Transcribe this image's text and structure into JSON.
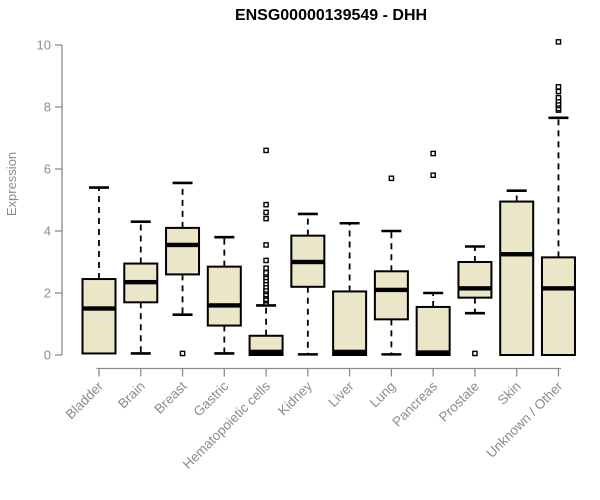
{
  "chart_data": {
    "type": "boxplot",
    "title": "ENSG00000139549 - DHH",
    "ylabel": "Expression",
    "xlabel": "",
    "ylim": [
      0,
      10
    ],
    "yticks": [
      0,
      2,
      4,
      6,
      8,
      10
    ],
    "grid": "off",
    "legend": "none",
    "colors": {
      "box_fill": "#ECE6C9",
      "box_border": "#000000",
      "median": "#000000",
      "whisker": "#000000",
      "outlier_border": "#000000",
      "outlier_fill": "#ffffff",
      "axis": "#8C8C8C",
      "tick_label": "#8C8C8C",
      "title": "#000000"
    },
    "categories": [
      "Bladder",
      "Brain",
      "Breast",
      "Gastric",
      "Hematopoietic cells",
      "Kidney",
      "Liver",
      "Lung",
      "Pancreas",
      "Prostate",
      "Skin",
      "Unknown / Other"
    ],
    "series": [
      {
        "label": "Bladder",
        "whisker_low": null,
        "q1": 0.05,
        "median": 1.5,
        "q3": 2.45,
        "whisker_high": 5.4,
        "outliers": []
      },
      {
        "label": "Brain",
        "whisker_low": 0.05,
        "q1": 1.7,
        "median": 2.35,
        "q3": 2.95,
        "whisker_high": 4.3,
        "outliers": []
      },
      {
        "label": "Breast",
        "whisker_low": 1.3,
        "q1": 2.6,
        "median": 3.55,
        "q3": 4.1,
        "whisker_high": 5.55,
        "outliers": [
          0.05
        ]
      },
      {
        "label": "Gastric",
        "whisker_low": 0.05,
        "q1": 0.95,
        "median": 1.6,
        "q3": 2.85,
        "whisker_high": 3.8,
        "outliers": []
      },
      {
        "label": "Hematopoietic cells",
        "whisker_low": null,
        "q1": 0.0,
        "median": 0.1,
        "q3": 0.62,
        "whisker_high": 1.6,
        "outliers": [
          1.68,
          1.75,
          1.8,
          1.9,
          1.95,
          2.05,
          2.1,
          2.2,
          2.3,
          2.4,
          2.5,
          2.6,
          2.65,
          2.8,
          3.05,
          3.55,
          4.4,
          4.6,
          4.85,
          6.6
        ]
      },
      {
        "label": "Kidney",
        "whisker_low": 0.02,
        "q1": 2.2,
        "median": 3.0,
        "q3": 3.85,
        "whisker_high": 4.55,
        "outliers": []
      },
      {
        "label": "Liver",
        "whisker_low": null,
        "q1": 0.0,
        "median": 0.1,
        "q3": 2.05,
        "whisker_high": 4.25,
        "outliers": []
      },
      {
        "label": "Lung",
        "whisker_low": 0.02,
        "q1": 1.15,
        "median": 2.1,
        "q3": 2.7,
        "whisker_high": 4.0,
        "outliers": [
          5.7
        ]
      },
      {
        "label": "Pancreas",
        "whisker_low": null,
        "q1": 0.0,
        "median": 0.08,
        "q3": 1.55,
        "whisker_high": 2.0,
        "outliers": [
          5.8,
          6.5
        ]
      },
      {
        "label": "Prostate",
        "whisker_low": 1.35,
        "q1": 1.85,
        "median": 2.15,
        "q3": 3.0,
        "whisker_high": 3.5,
        "outliers": [
          0.05
        ]
      },
      {
        "label": "Skin",
        "whisker_low": null,
        "q1": 0.0,
        "median": 3.25,
        "q3": 4.95,
        "whisker_high": 5.3,
        "outliers": []
      },
      {
        "label": "Unknown / Other",
        "whisker_low": null,
        "q1": 0.0,
        "median": 2.15,
        "q3": 3.15,
        "whisker_high": 7.65,
        "outliers": [
          7.9,
          7.95,
          8.05,
          8.1,
          8.2,
          8.3,
          8.5,
          8.65,
          10.1
        ]
      }
    ]
  }
}
